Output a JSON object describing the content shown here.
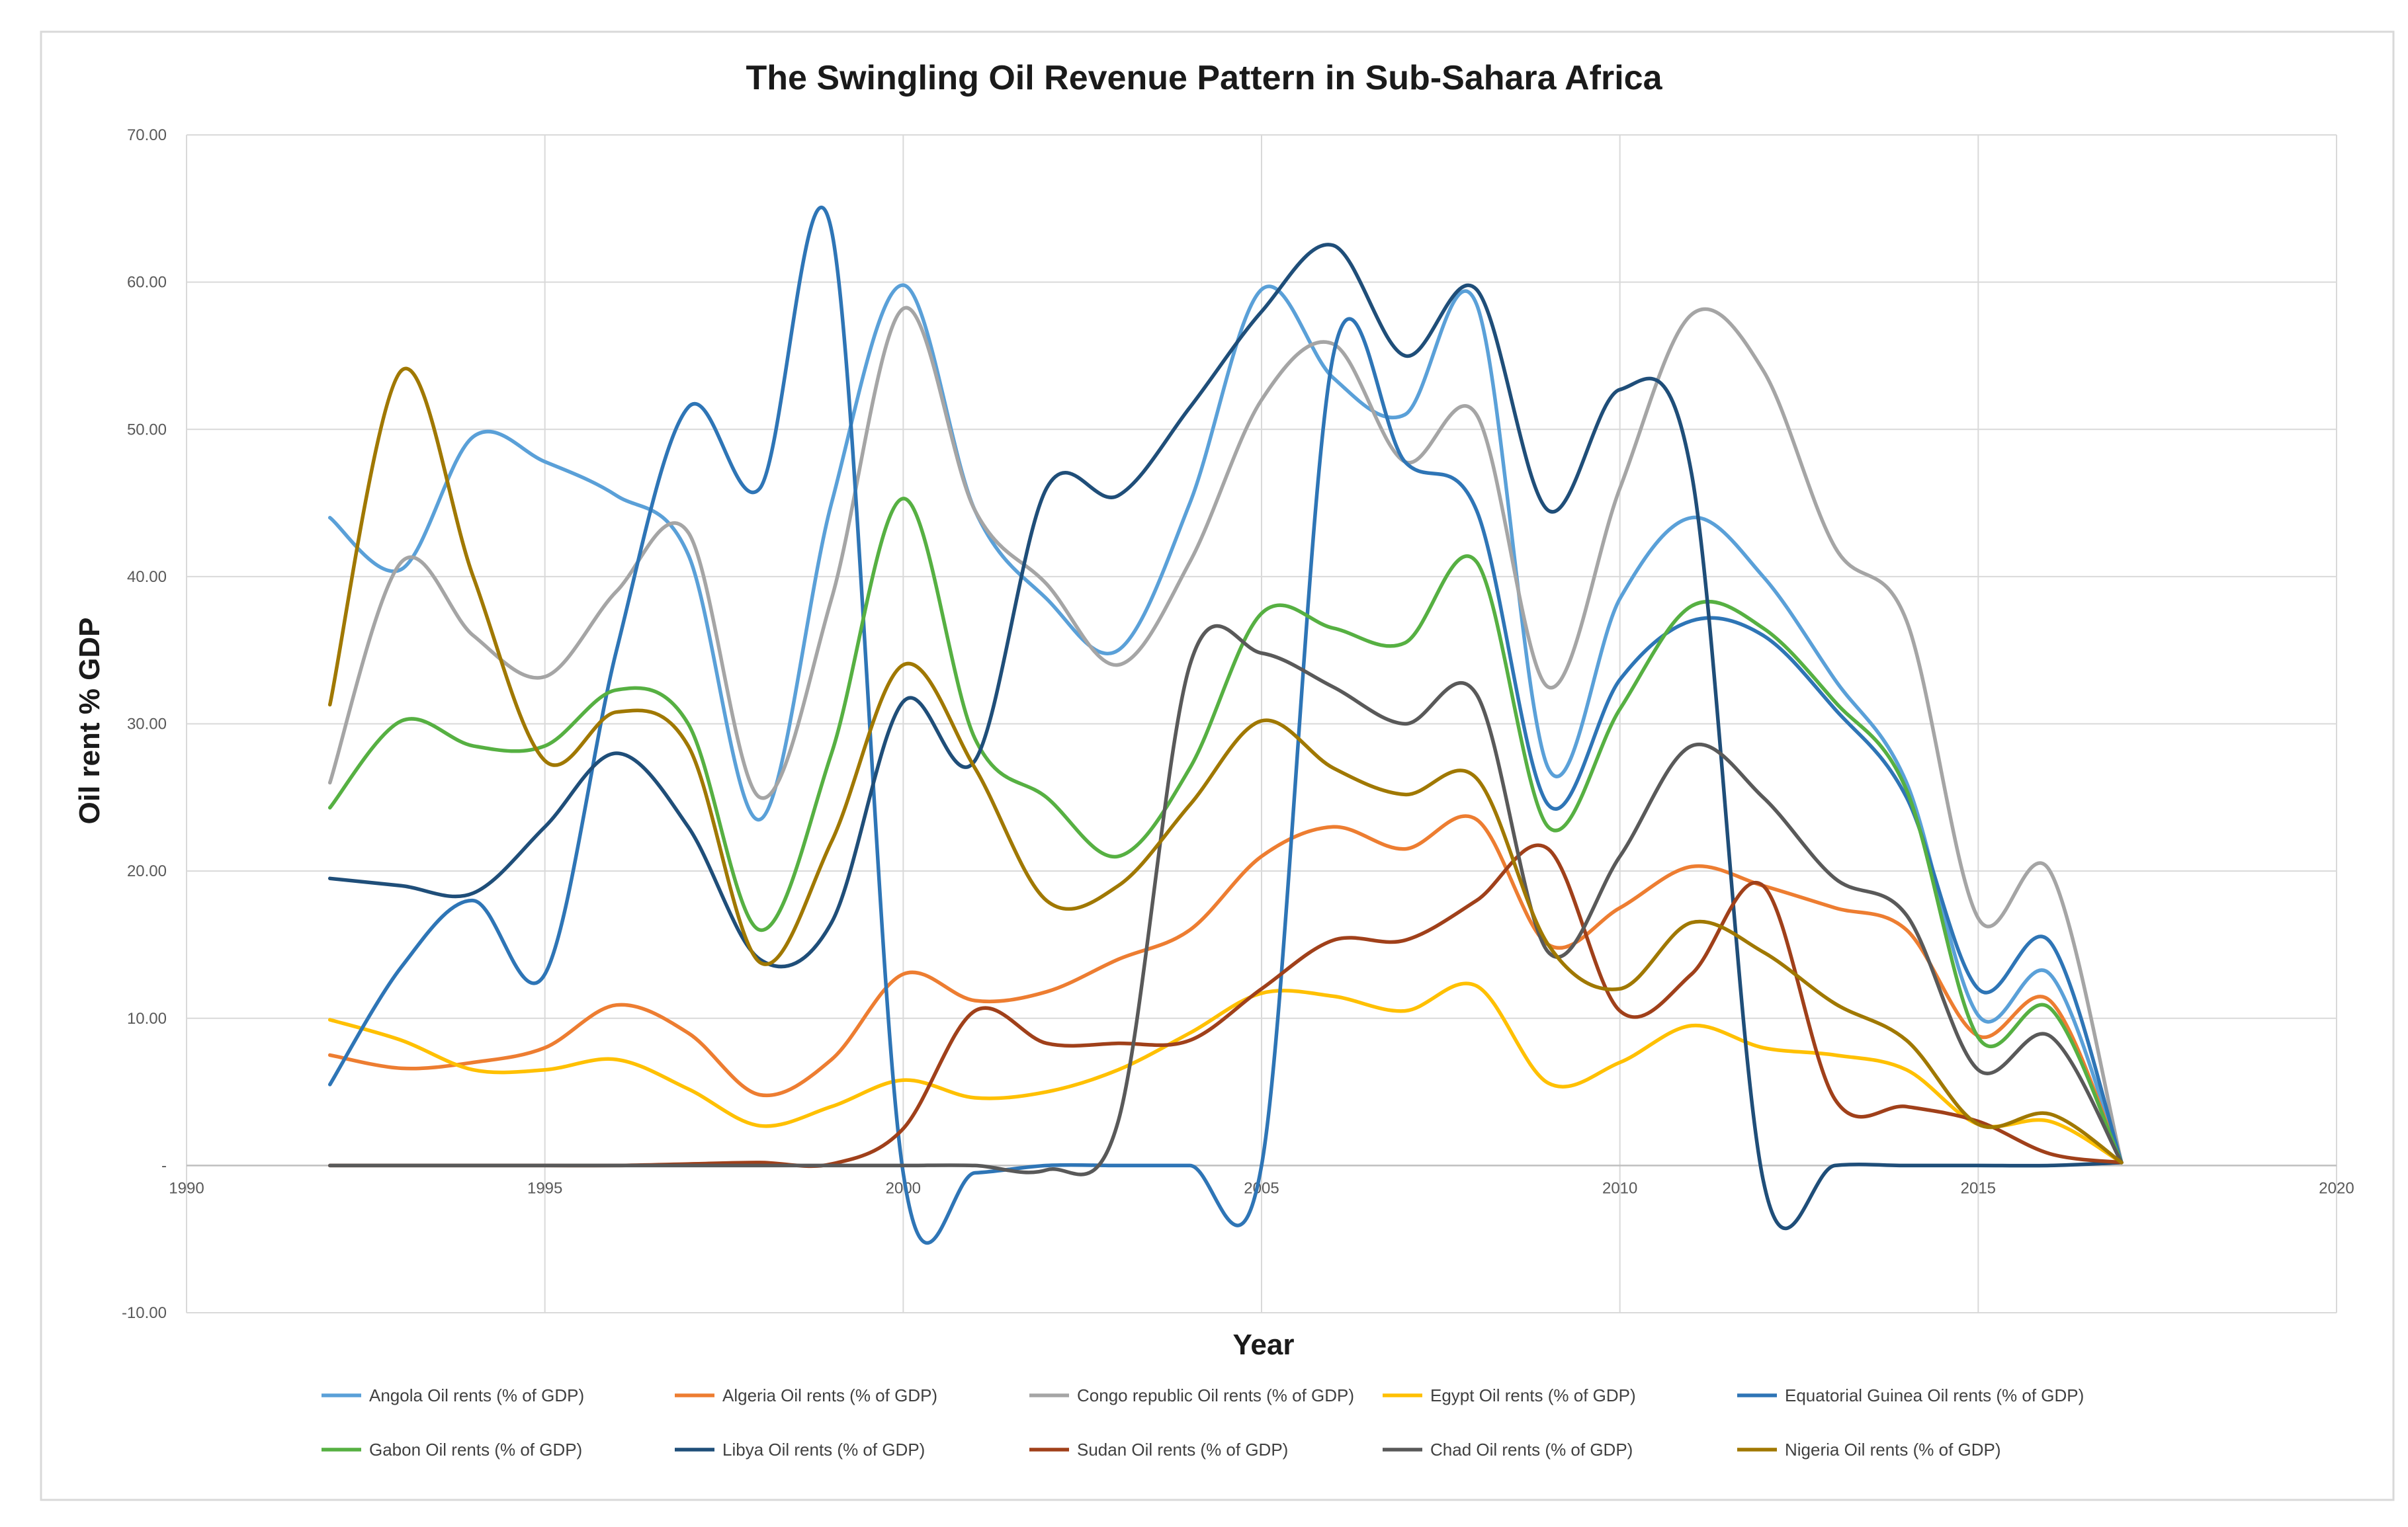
{
  "chart_data": {
    "type": "line",
    "title": "The Swingling Oil Revenue Pattern in Sub-Sahara Africa",
    "xlabel": "Year",
    "ylabel": "Oil rent % GDP",
    "xlim": [
      1990,
      2020
    ],
    "ylim": [
      -10,
      70
    ],
    "x_ticks": [
      "1990",
      "1995",
      "2000",
      "2005",
      "2010",
      "2015",
      "2020"
    ],
    "y_ticks": [
      "-10.00",
      "-",
      "10.00",
      "20.00",
      "30.00",
      "40.00",
      "50.00",
      "60.00",
      "70.00"
    ],
    "legend_position": "bottom",
    "grid": true,
    "x": [
      1992,
      1993,
      1994,
      1995,
      1996,
      1997,
      1998,
      1999,
      2000,
      2001,
      2002,
      2003,
      2004,
      2005,
      2006,
      2007,
      2008,
      2009,
      2010,
      2011,
      2012,
      2013,
      2014,
      2015,
      2016,
      2017
    ],
    "series": [
      {
        "name": "Angola Oil rents (% of GDP)",
        "color": "#5aa0d8",
        "values": [
          44.0,
          40.5,
          49.5,
          47.8,
          45.5,
          41.5,
          23.5,
          45.0,
          59.8,
          44.5,
          38.5,
          35.0,
          45.0,
          59.5,
          53.5,
          51.0,
          58.5,
          27.0,
          38.5,
          44.0,
          40.0,
          33.0,
          26.0,
          10.2,
          13.0,
          0.2
        ]
      },
      {
        "name": "Algeria Oil rents (% of GDP)",
        "color": "#ed7d31",
        "values": [
          7.5,
          6.6,
          7.0,
          8.0,
          10.9,
          9.0,
          4.8,
          7.2,
          13.0,
          11.2,
          11.8,
          14.0,
          16.0,
          21.0,
          23.0,
          21.5,
          23.5,
          15.0,
          17.5,
          20.3,
          19.0,
          17.5,
          16.0,
          8.8,
          11.2,
          0.2
        ]
      },
      {
        "name": "Congo republic Oil rents (% of GDP)",
        "color": "#a5a5a5",
        "values": [
          26.0,
          41.0,
          36.0,
          33.2,
          39.0,
          43.0,
          25.0,
          38.5,
          58.2,
          44.5,
          39.5,
          34.0,
          41.0,
          52.0,
          55.8,
          47.8,
          51.0,
          32.5,
          46.0,
          57.8,
          54.0,
          42.0,
          37.0,
          16.8,
          20.0,
          0.2
        ]
      },
      {
        "name": "Egypt Oil rents (% of GDP)",
        "color": "#ffc000",
        "values": [
          9.9,
          8.5,
          6.5,
          6.5,
          7.2,
          5.2,
          2.7,
          4.0,
          5.8,
          4.6,
          5.0,
          6.5,
          9.0,
          11.7,
          11.5,
          10.5,
          12.2,
          5.6,
          7.0,
          9.5,
          8.0,
          7.5,
          6.5,
          2.8,
          3.0,
          0.2
        ]
      },
      {
        "name": "Equatorial Guinea Oil rents (% of GDP)",
        "color": "#2e75b6",
        "values": [
          5.5,
          13.5,
          18.0,
          13.0,
          35.0,
          51.5,
          46.0,
          63.5,
          -0.5,
          -0.5,
          0.0,
          0.0,
          0.0,
          0.0,
          55.0,
          47.8,
          44.5,
          24.5,
          33.0,
          37.0,
          36.0,
          31.0,
          25.0,
          12.0,
          15.2,
          0.2
        ]
      },
      {
        "name": "Gabon Oil rents (% of GDP)",
        "color": "#56b042",
        "values": [
          24.3,
          30.2,
          28.5,
          28.5,
          32.3,
          30.0,
          16.0,
          28.0,
          45.3,
          29.0,
          25.0,
          21.0,
          27.0,
          37.5,
          36.5,
          35.5,
          41.0,
          23.0,
          31.0,
          38.0,
          36.5,
          31.5,
          25.5,
          8.7,
          10.7,
          0.2
        ]
      },
      {
        "name": "Libya Oil rents (% of GDP)",
        "color": "#1f4e79",
        "values": [
          19.5,
          19.0,
          18.5,
          23.0,
          28.0,
          23.0,
          14.0,
          16.5,
          31.5,
          27.5,
          46.0,
          45.5,
          51.5,
          58.0,
          62.5,
          55.0,
          59.5,
          44.5,
          52.7,
          47.0,
          -1.0,
          0.0,
          0.0,
          0.0,
          0.0,
          0.2
        ]
      },
      {
        "name": "Sudan Oil rents (% of GDP)",
        "color": "#a0401a",
        "values": [
          0.0,
          0.0,
          0.0,
          0.0,
          0.0,
          0.1,
          0.2,
          0.1,
          2.5,
          10.5,
          8.3,
          8.3,
          8.5,
          12.0,
          15.3,
          15.3,
          18.0,
          21.5,
          10.5,
          13.0,
          19.0,
          4.5,
          4.0,
          3.0,
          0.8,
          0.2
        ]
      },
      {
        "name": "Chad Oil rents (% of GDP)",
        "color": "#595959",
        "values": [
          0.0,
          0.0,
          0.0,
          0.0,
          0.0,
          0.0,
          0.0,
          0.0,
          0.0,
          0.0,
          -0.3,
          3.0,
          34.0,
          34.8,
          32.5,
          30.0,
          32.0,
          14.5,
          21.0,
          28.5,
          25.0,
          19.5,
          17.0,
          6.5,
          8.8,
          0.2
        ]
      },
      {
        "name": "Nigeria Oil rents (% of GDP)",
        "color": "#a07800",
        "values": [
          31.3,
          54.0,
          40.0,
          27.5,
          30.8,
          28.5,
          13.8,
          22.0,
          34.0,
          27.0,
          18.0,
          19.0,
          24.5,
          30.2,
          27.0,
          25.2,
          26.3,
          15.0,
          12.0,
          16.5,
          14.5,
          11.0,
          8.5,
          2.8,
          3.5,
          0.2
        ]
      }
    ]
  }
}
